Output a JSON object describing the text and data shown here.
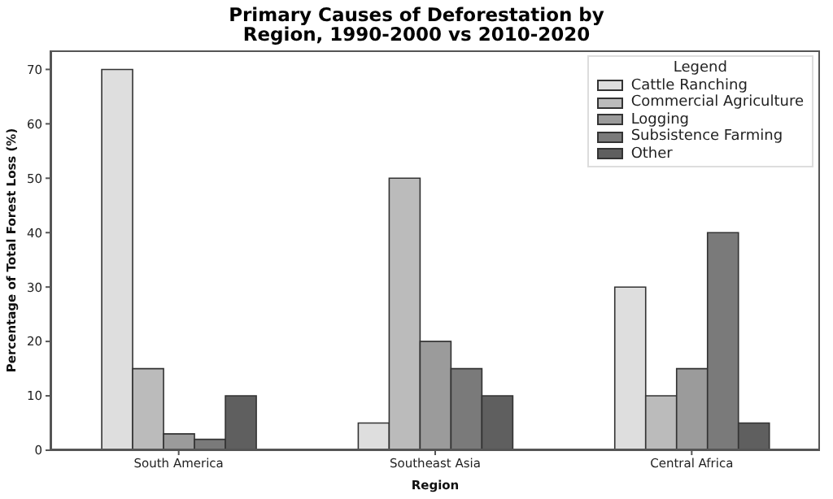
{
  "chart_data": {
    "type": "bar",
    "title": "Primary Causes of Deforestation by Region, 1990-2000 vs 2010-2020",
    "xlabel": "Region",
    "ylabel": "Percentage of Total Forest Loss (%)",
    "legend_title": "Legend",
    "categories": [
      "South America",
      "Southeast Asia",
      "Central Africa"
    ],
    "series": [
      {
        "name": "Cattle Ranching",
        "color": "#dedede",
        "values": [
          70,
          5,
          30
        ]
      },
      {
        "name": "Commercial Agriculture",
        "color": "#bbbbbb",
        "values": [
          15,
          50,
          10
        ]
      },
      {
        "name": "Logging",
        "color": "#9b9b9b",
        "values": [
          3,
          20,
          15
        ]
      },
      {
        "name": "Subsistence Farming",
        "color": "#7a7a7a",
        "values": [
          2,
          15,
          40
        ]
      },
      {
        "name": "Other",
        "color": "#5f5f5f",
        "values": [
          10,
          10,
          5
        ]
      }
    ],
    "ylim": [
      0,
      73.5
    ],
    "yticks": [
      0,
      10,
      20,
      30,
      40,
      50,
      60,
      70
    ],
    "grid": false,
    "legend": "top right"
  }
}
